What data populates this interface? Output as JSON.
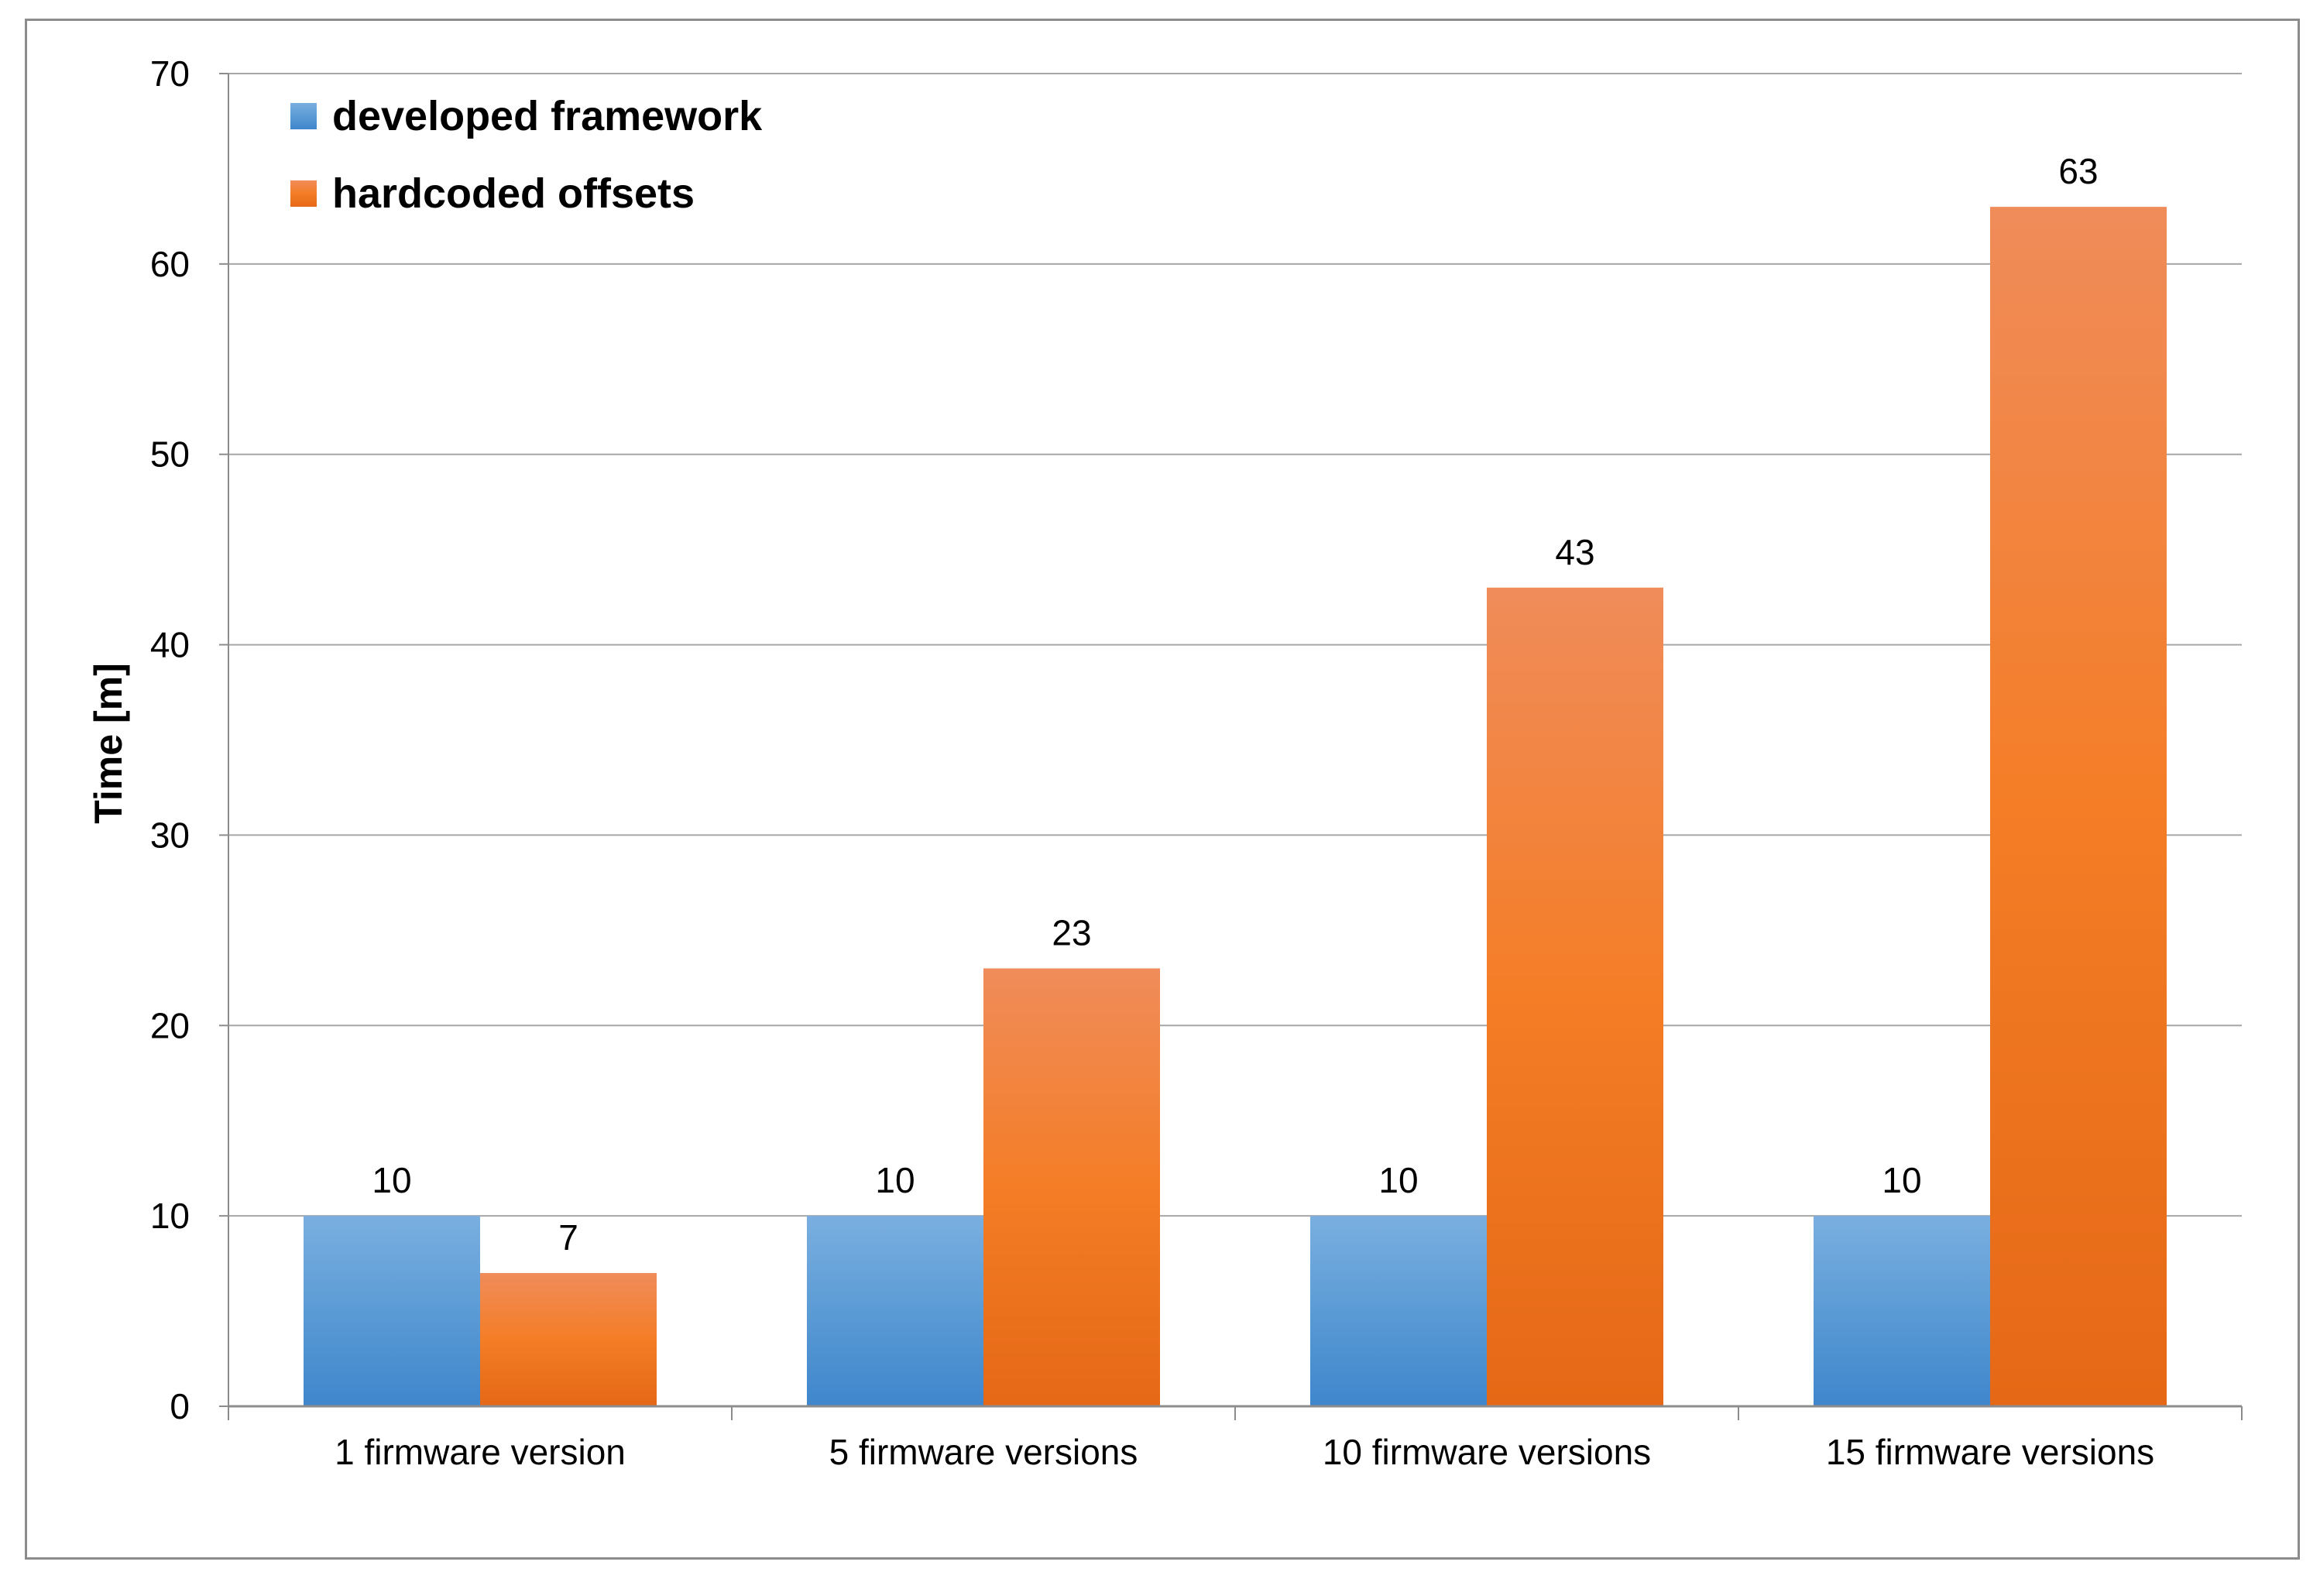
{
  "chart_data": {
    "type": "bar",
    "title": "",
    "xlabel": "",
    "ylabel": "Time [m]",
    "ylim": [
      0,
      70
    ],
    "yticks": [
      0,
      10,
      20,
      30,
      40,
      50,
      60,
      70
    ],
    "grid": true,
    "legend_position": "top-left",
    "categories": [
      "1 firmware version",
      "5 firmware versions",
      "10 firmware versions",
      "15 firmware versions"
    ],
    "series": [
      {
        "name": "developed framework",
        "values": [
          10,
          10,
          10,
          10
        ],
        "color": "#5b9bd5",
        "color_light": "#7aafe0",
        "color_dark": "#3f86cc"
      },
      {
        "name": "hardcoded offsets",
        "values": [
          7,
          23,
          43,
          63
        ],
        "color": "#f47d26",
        "color_light": "#f08c5a",
        "color_dark": "#e56816"
      }
    ]
  }
}
